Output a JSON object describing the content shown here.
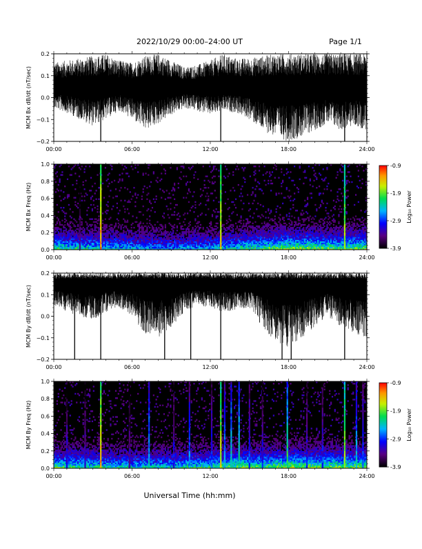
{
  "header": {
    "title": "2022/10/29  00:00–24:00 UT",
    "page": "Page 1/1"
  },
  "footer": {
    "xlabel": "Universal Time (hh:mm)"
  },
  "chart_data": [
    {
      "type": "line",
      "ylabel": "MCM Bx dB/dt (nT/sec)",
      "ylim": [
        -0.2,
        0.2
      ],
      "yticks": [
        "0.2",
        "0.1",
        "0.0",
        "−0.1",
        "−0.2"
      ],
      "xlim": [
        0,
        24
      ],
      "xticks": [
        "00:00",
        "06:00",
        "12:00",
        "18:00",
        "24:00"
      ],
      "x_units": "hours UT",
      "baseline": 0.05,
      "envelope_hours": [
        0,
        1,
        2,
        3,
        4,
        5,
        6,
        7,
        8,
        9,
        10,
        11,
        12,
        13,
        14,
        15,
        16,
        17,
        18,
        19,
        20,
        21,
        22,
        23,
        24
      ],
      "envelope_upper": [
        0.16,
        0.17,
        0.18,
        0.19,
        0.2,
        0.17,
        0.16,
        0.19,
        0.2,
        0.17,
        0.14,
        0.15,
        0.17,
        0.2,
        0.18,
        0.18,
        0.19,
        0.2,
        0.2,
        0.2,
        0.2,
        0.2,
        0.2,
        0.2,
        0.2
      ],
      "envelope_lower": [
        -0.05,
        -0.07,
        -0.1,
        -0.13,
        -0.1,
        -0.06,
        -0.1,
        -0.15,
        -0.12,
        -0.08,
        -0.05,
        -0.06,
        -0.08,
        -0.06,
        -0.07,
        -0.1,
        -0.15,
        -0.18,
        -0.2,
        -0.18,
        -0.15,
        -0.12,
        -0.15,
        -0.13,
        -0.15
      ],
      "spikes": [
        {
          "hour": 3.6,
          "low": -0.2,
          "high": 0.1
        },
        {
          "hour": 12.8,
          "low": -0.2,
          "high": 0.15
        },
        {
          "hour": 22.3,
          "low": -0.2,
          "high": 0.2
        }
      ],
      "grid": false
    },
    {
      "type": "heatmap",
      "ylabel": "MCM Bx Freq (Hz)",
      "ylim": [
        0,
        1.0
      ],
      "yticks": [
        "1.0",
        "0.8",
        "0.6",
        "0.4",
        "0.2",
        "0.0"
      ],
      "xlim": [
        0,
        24
      ],
      "xticks": [
        "00:00",
        "06:00",
        "12:00",
        "18:00",
        "24:00"
      ],
      "x_units": "hours UT",
      "colorbar": {
        "label": "Log₁₀ Power",
        "min": -3.9,
        "max": -0.9,
        "ticks": [
          "-0.9",
          "-1.9",
          "-2.9",
          "-3.9"
        ]
      },
      "activity_hours": [
        0,
        2,
        4,
        6,
        8,
        10,
        12,
        14,
        16,
        18,
        20,
        22,
        24
      ],
      "activity_level": [
        0.7,
        0.65,
        0.6,
        0.55,
        0.5,
        0.5,
        0.55,
        0.65,
        0.75,
        0.85,
        0.8,
        0.75,
        0.8
      ],
      "vertical_lines": [
        {
          "hour": 2.0,
          "log_power": -3.2,
          "max_freq": 0.8
        },
        {
          "hour": 3.6,
          "log_power": -1.2,
          "max_freq": 1.0
        },
        {
          "hour": 12.8,
          "log_power": -1.4,
          "max_freq": 1.0
        },
        {
          "hour": 22.3,
          "log_power": -1.6,
          "max_freq": 1.0
        }
      ]
    },
    {
      "type": "line",
      "ylabel": "MCM By dB/dt (nT/sec)",
      "ylim": [
        -0.2,
        0.2
      ],
      "yticks": [
        "0.2",
        "0.1",
        "0.0",
        "−0.1",
        "−0.2"
      ],
      "xlim": [
        0,
        24
      ],
      "xticks": [
        "00:00",
        "06:00",
        "12:00",
        "18:00",
        "24:00"
      ],
      "x_units": "hours UT",
      "baseline": 0.16,
      "envelope_hours": [
        0,
        1,
        2,
        3,
        4,
        5,
        6,
        7,
        8,
        9,
        10,
        11,
        12,
        13,
        14,
        15,
        16,
        17,
        18,
        19,
        20,
        21,
        22,
        23,
        24
      ],
      "envelope_upper": [
        0.2,
        0.2,
        0.2,
        0.2,
        0.2,
        0.2,
        0.2,
        0.2,
        0.2,
        0.2,
        0.2,
        0.2,
        0.2,
        0.2,
        0.2,
        0.2,
        0.2,
        0.2,
        0.2,
        0.2,
        0.2,
        0.2,
        0.2,
        0.2,
        0.2
      ],
      "envelope_lower": [
        0.05,
        0.02,
        0.0,
        -0.02,
        0.02,
        0.04,
        0.0,
        -0.08,
        -0.1,
        -0.05,
        0.02,
        0.05,
        0.04,
        0.02,
        0.03,
        0.04,
        -0.05,
        -0.12,
        -0.15,
        -0.1,
        -0.05,
        0.0,
        -0.05,
        -0.08,
        -0.1
      ],
      "spikes": [
        {
          "hour": 1.6,
          "low": -0.2,
          "high": 0.2
        },
        {
          "hour": 3.6,
          "low": -0.2,
          "high": 0.2
        },
        {
          "hour": 8.5,
          "low": -0.2,
          "high": 0.2
        },
        {
          "hour": 10.5,
          "low": -0.2,
          "high": 0.2
        },
        {
          "hour": 12.8,
          "low": -0.2,
          "high": 0.2
        },
        {
          "hour": 17.5,
          "low": -0.2,
          "high": 0.2
        },
        {
          "hour": 18.2,
          "low": -0.2,
          "high": 0.2
        },
        {
          "hour": 22.3,
          "low": -0.2,
          "high": 0.2
        }
      ],
      "grid": false
    },
    {
      "type": "heatmap",
      "ylabel": "MCM By Freq (Hz)",
      "ylim": [
        0,
        1.0
      ],
      "yticks": [
        "1.0",
        "0.8",
        "0.6",
        "0.4",
        "0.2",
        "0.0"
      ],
      "xlim": [
        0,
        24
      ],
      "xticks": [
        "00:00",
        "06:00",
        "12:00",
        "18:00",
        "24:00"
      ],
      "x_units": "hours UT",
      "colorbar": {
        "label": "Log₁₀ Power",
        "min": -3.9,
        "max": -0.9,
        "ticks": [
          "-0.9",
          "-1.9",
          "-2.9",
          "-3.9"
        ]
      },
      "activity_hours": [
        0,
        2,
        4,
        6,
        8,
        10,
        12,
        14,
        16,
        18,
        20,
        22,
        24
      ],
      "activity_level": [
        0.75,
        0.7,
        0.65,
        0.6,
        0.6,
        0.65,
        0.7,
        0.8,
        0.75,
        0.85,
        0.8,
        0.8,
        0.8
      ],
      "vertical_lines": [
        {
          "hour": 1.0,
          "log_power": -3.0,
          "max_freq": 1.0
        },
        {
          "hour": 2.4,
          "log_power": -3.1,
          "max_freq": 1.0
        },
        {
          "hour": 3.6,
          "log_power": -1.3,
          "max_freq": 1.0
        },
        {
          "hour": 5.8,
          "log_power": -3.2,
          "max_freq": 1.0
        },
        {
          "hour": 7.3,
          "log_power": -2.4,
          "max_freq": 1.0
        },
        {
          "hour": 9.2,
          "log_power": -3.0,
          "max_freq": 1.0
        },
        {
          "hour": 10.4,
          "log_power": -2.6,
          "max_freq": 1.0
        },
        {
          "hour": 12.1,
          "log_power": -2.8,
          "max_freq": 1.0
        },
        {
          "hour": 12.8,
          "log_power": -1.5,
          "max_freq": 1.0
        },
        {
          "hour": 13.1,
          "log_power": -2.5,
          "max_freq": 1.0
        },
        {
          "hour": 13.6,
          "log_power": -2.3,
          "max_freq": 1.0
        },
        {
          "hour": 14.2,
          "log_power": -2.2,
          "max_freq": 1.0
        },
        {
          "hour": 15.0,
          "log_power": -2.8,
          "max_freq": 1.0
        },
        {
          "hour": 16.0,
          "log_power": -3.0,
          "max_freq": 1.0
        },
        {
          "hour": 17.9,
          "log_power": -2.0,
          "max_freq": 1.0
        },
        {
          "hour": 19.4,
          "log_power": -3.0,
          "max_freq": 1.0
        },
        {
          "hour": 20.6,
          "log_power": -2.9,
          "max_freq": 1.0
        },
        {
          "hour": 22.3,
          "log_power": -1.6,
          "max_freq": 1.0
        },
        {
          "hour": 23.2,
          "log_power": -2.4,
          "max_freq": 1.0
        },
        {
          "hour": 23.7,
          "log_power": -2.7,
          "max_freq": 1.0
        }
      ]
    }
  ]
}
